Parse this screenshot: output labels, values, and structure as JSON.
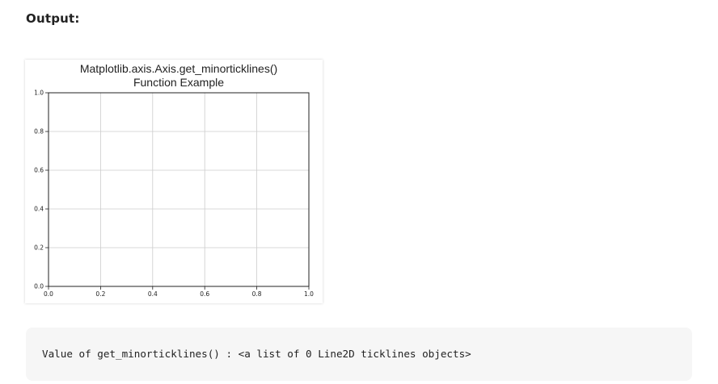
{
  "heading": "Output:",
  "chart_data": {
    "type": "line",
    "title": "Matplotlib.axis.Axis.get_minorticklines()",
    "subtitle": "Function Example",
    "xlim": [
      0.0,
      1.0
    ],
    "ylim": [
      0.0,
      1.0
    ],
    "xticks": [
      "0.0",
      "0.2",
      "0.4",
      "0.6",
      "0.8",
      "1.0"
    ],
    "yticks": [
      "0.0",
      "0.2",
      "0.4",
      "0.6",
      "0.8",
      "1.0"
    ],
    "grid": true,
    "series": []
  },
  "code_output": "Value of get_minorticklines() : <a list of 0 Line2D ticklines objects>",
  "colors": {
    "grid": "#cccccc",
    "axes": "#222222",
    "code_background": "#f6f6f6"
  }
}
